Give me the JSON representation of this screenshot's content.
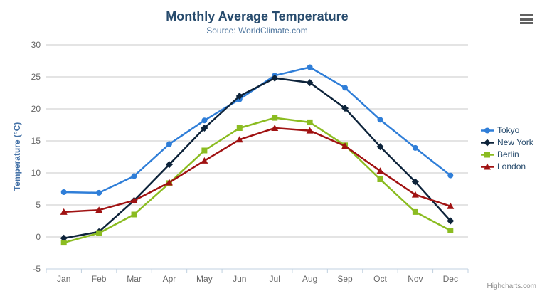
{
  "credits": "Highcharts.com",
  "colors": {
    "title": "#274b6d",
    "subtitle": "#4d759e",
    "axis_label": "#666666",
    "yaxis_title": "#4572a7",
    "grid": "#c9c9c9",
    "axis_line": "#c0d0e0",
    "credits": "#909090",
    "export_icon": "#616161"
  },
  "chart_data": {
    "type": "line",
    "title": "Monthly Average Temperature",
    "subtitle": "Source: WorldClimate.com",
    "xlabel": "",
    "ylabel": "Temperature (°C)",
    "ylim": [
      -5,
      30
    ],
    "ytick_step": 5,
    "yticks": [
      -5,
      0,
      5,
      10,
      15,
      20,
      25,
      30
    ],
    "grid": true,
    "legend_position": "right",
    "categories": [
      "Jan",
      "Feb",
      "Mar",
      "Apr",
      "May",
      "Jun",
      "Jul",
      "Aug",
      "Sep",
      "Oct",
      "Nov",
      "Dec"
    ],
    "series": [
      {
        "name": "Tokyo",
        "color": "#2f7ed8",
        "marker": "circle",
        "values": [
          7.0,
          6.9,
          9.5,
          14.5,
          18.2,
          21.5,
          25.2,
          26.5,
          23.3,
          18.3,
          13.9,
          9.6
        ]
      },
      {
        "name": "New York",
        "color": "#0d233a",
        "marker": "diamond",
        "values": [
          -0.2,
          0.8,
          5.7,
          11.3,
          17.0,
          22.0,
          24.8,
          24.1,
          20.1,
          14.1,
          8.6,
          2.5
        ]
      },
      {
        "name": "Berlin",
        "color": "#8bbc21",
        "marker": "square",
        "values": [
          -0.9,
          0.6,
          3.5,
          8.4,
          13.5,
          17.0,
          18.6,
          17.9,
          14.3,
          9.0,
          3.9,
          1.0
        ]
      },
      {
        "name": "London",
        "color": "#a01212",
        "marker": "triangle",
        "values": [
          3.9,
          4.2,
          5.7,
          8.5,
          11.9,
          15.2,
          17.0,
          16.6,
          14.2,
          10.3,
          6.6,
          4.8
        ]
      }
    ]
  }
}
